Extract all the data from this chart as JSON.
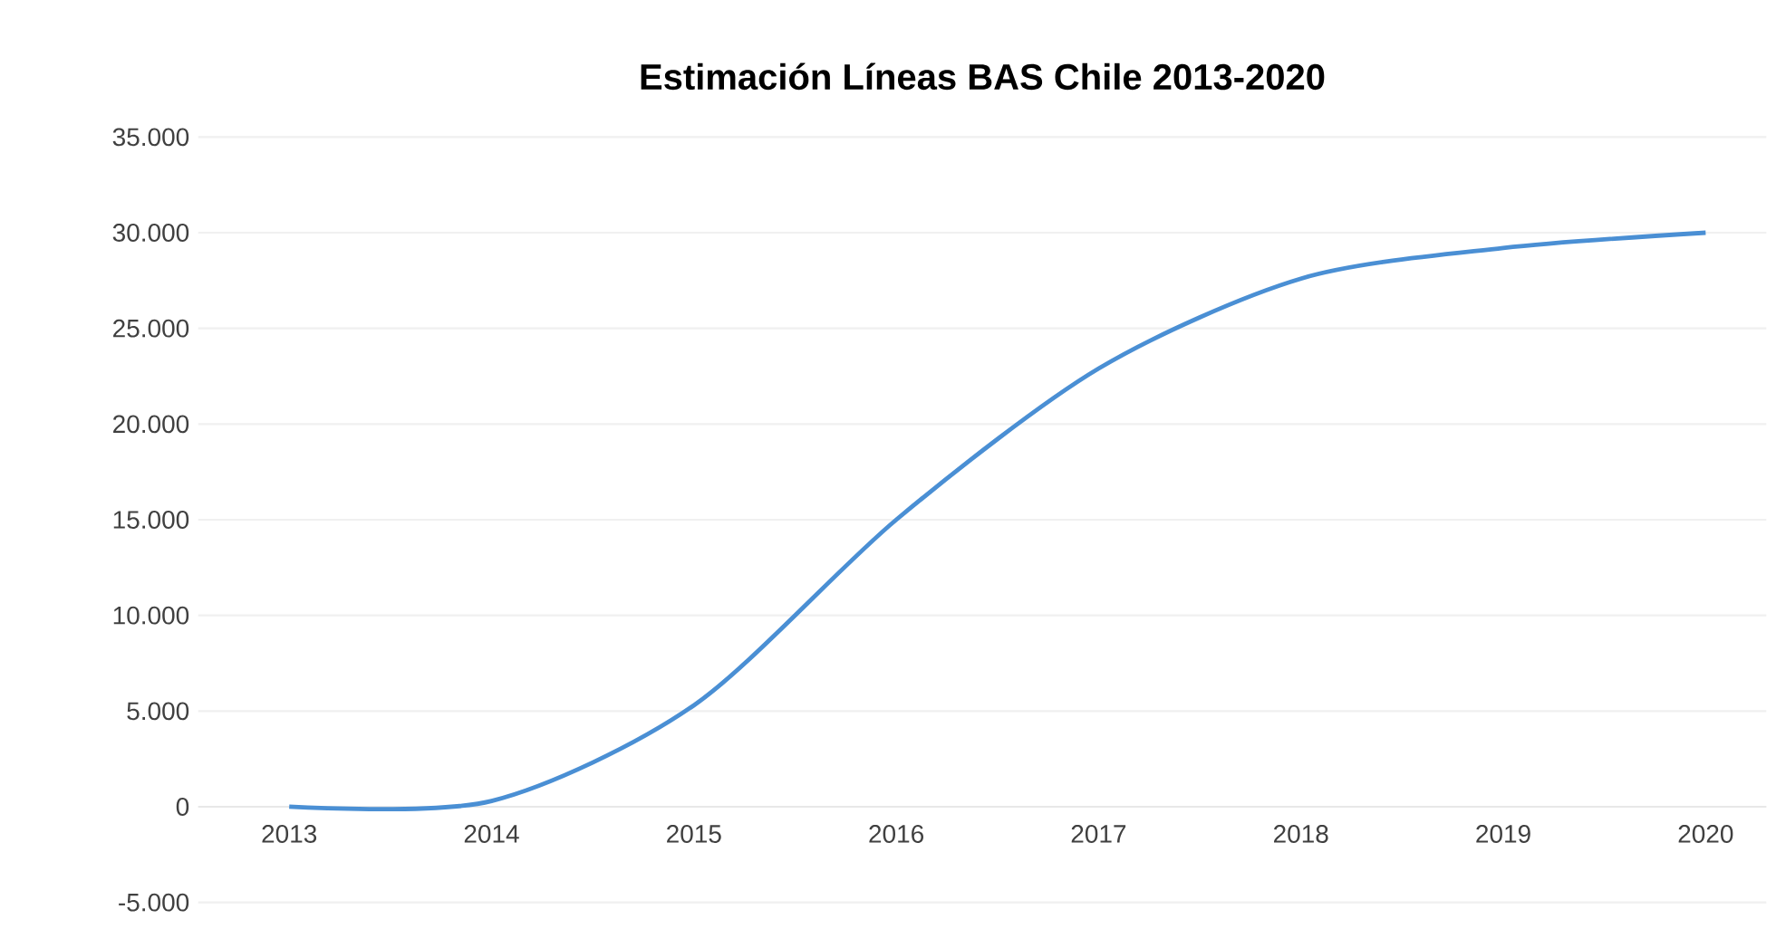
{
  "chart_data": {
    "type": "line",
    "title": "Estimación Líneas BAS Chile 2013-2020",
    "categories": [
      "2013",
      "2014",
      "2015",
      "2016",
      "2017",
      "2018",
      "2019",
      "2020"
    ],
    "series": [
      {
        "color": "#4a8fd4",
        "values": [
          0,
          300,
          5300,
          15000,
          22900,
          27600,
          29200,
          30000
        ]
      }
    ],
    "ylim": [
      -5000,
      35000
    ],
    "yticks": [
      {
        "value": -5000,
        "label": "-5.000"
      },
      {
        "value": 0,
        "label": "0"
      },
      {
        "value": 5000,
        "label": "5.000"
      },
      {
        "value": 10000,
        "label": "10.000"
      },
      {
        "value": 15000,
        "label": "15.000"
      },
      {
        "value": 20000,
        "label": "20.000"
      },
      {
        "value": 25000,
        "label": "25.000"
      },
      {
        "value": 30000,
        "label": "30.000"
      },
      {
        "value": 35000,
        "label": "35.000"
      }
    ],
    "grid": "y",
    "marker": "none",
    "line_style": "solid"
  }
}
